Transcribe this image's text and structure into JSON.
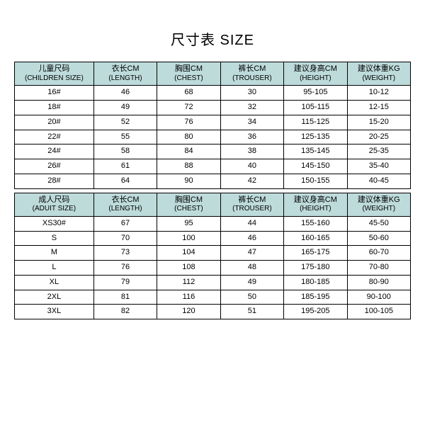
{
  "title": "尺寸表 SIZE",
  "header_bg": "#bedbdb",
  "border_color": "#000000",
  "font_family": "Microsoft YaHei",
  "children_table": {
    "type": "table",
    "col_widths_pct": [
      20,
      16,
      16,
      16,
      16,
      16
    ],
    "columns": [
      {
        "zh": "儿童尺码",
        "en": "(CHILDREN SIZE)"
      },
      {
        "zh": "衣长CM",
        "en": "(LENGTH)"
      },
      {
        "zh": "胸围CM",
        "en": "(CHEST)"
      },
      {
        "zh": "裤长CM",
        "en": "(TROUSER)"
      },
      {
        "zh": "建议身高CM",
        "en": "(HEIGHT)"
      },
      {
        "zh": "建议体重KG",
        "en": "(WEIGHT)"
      }
    ],
    "rows": [
      [
        "16#",
        "46",
        "68",
        "30",
        "95-105",
        "10-12"
      ],
      [
        "18#",
        "49",
        "72",
        "32",
        "105-115",
        "12-15"
      ],
      [
        "20#",
        "52",
        "76",
        "34",
        "115-125",
        "15-20"
      ],
      [
        "22#",
        "55",
        "80",
        "36",
        "125-135",
        "20-25"
      ],
      [
        "24#",
        "58",
        "84",
        "38",
        "135-145",
        "25-35"
      ],
      [
        "26#",
        "61",
        "88",
        "40",
        "145-150",
        "35-40"
      ],
      [
        "28#",
        "64",
        "90",
        "42",
        "150-155",
        "40-45"
      ]
    ]
  },
  "adult_table": {
    "type": "table",
    "col_widths_pct": [
      20,
      16,
      16,
      16,
      16,
      16
    ],
    "columns": [
      {
        "zh": "成人尺码",
        "en": "(ADUIT SIZE)"
      },
      {
        "zh": "衣长CM",
        "en": "(LENGTH)"
      },
      {
        "zh": "胸围CM",
        "en": "(CHEST)"
      },
      {
        "zh": "裤长CM",
        "en": "(TROUSER)"
      },
      {
        "zh": "建议身高CM",
        "en": "(HEIGHT)"
      },
      {
        "zh": "建议体重KG",
        "en": "(WEIGHT)"
      }
    ],
    "rows": [
      [
        "XS30#",
        "67",
        "95",
        "44",
        "155-160",
        "45-50"
      ],
      [
        "S",
        "70",
        "100",
        "46",
        "160-165",
        "50-60"
      ],
      [
        "M",
        "73",
        "104",
        "47",
        "165-175",
        "60-70"
      ],
      [
        "L",
        "76",
        "108",
        "48",
        "175-180",
        "70-80"
      ],
      [
        "XL",
        "79",
        "112",
        "49",
        "180-185",
        "80-90"
      ],
      [
        "2XL",
        "81",
        "116",
        "50",
        "185-195",
        "90-100"
      ],
      [
        "3XL",
        "82",
        "120",
        "51",
        "195-205",
        "100-105"
      ]
    ]
  }
}
